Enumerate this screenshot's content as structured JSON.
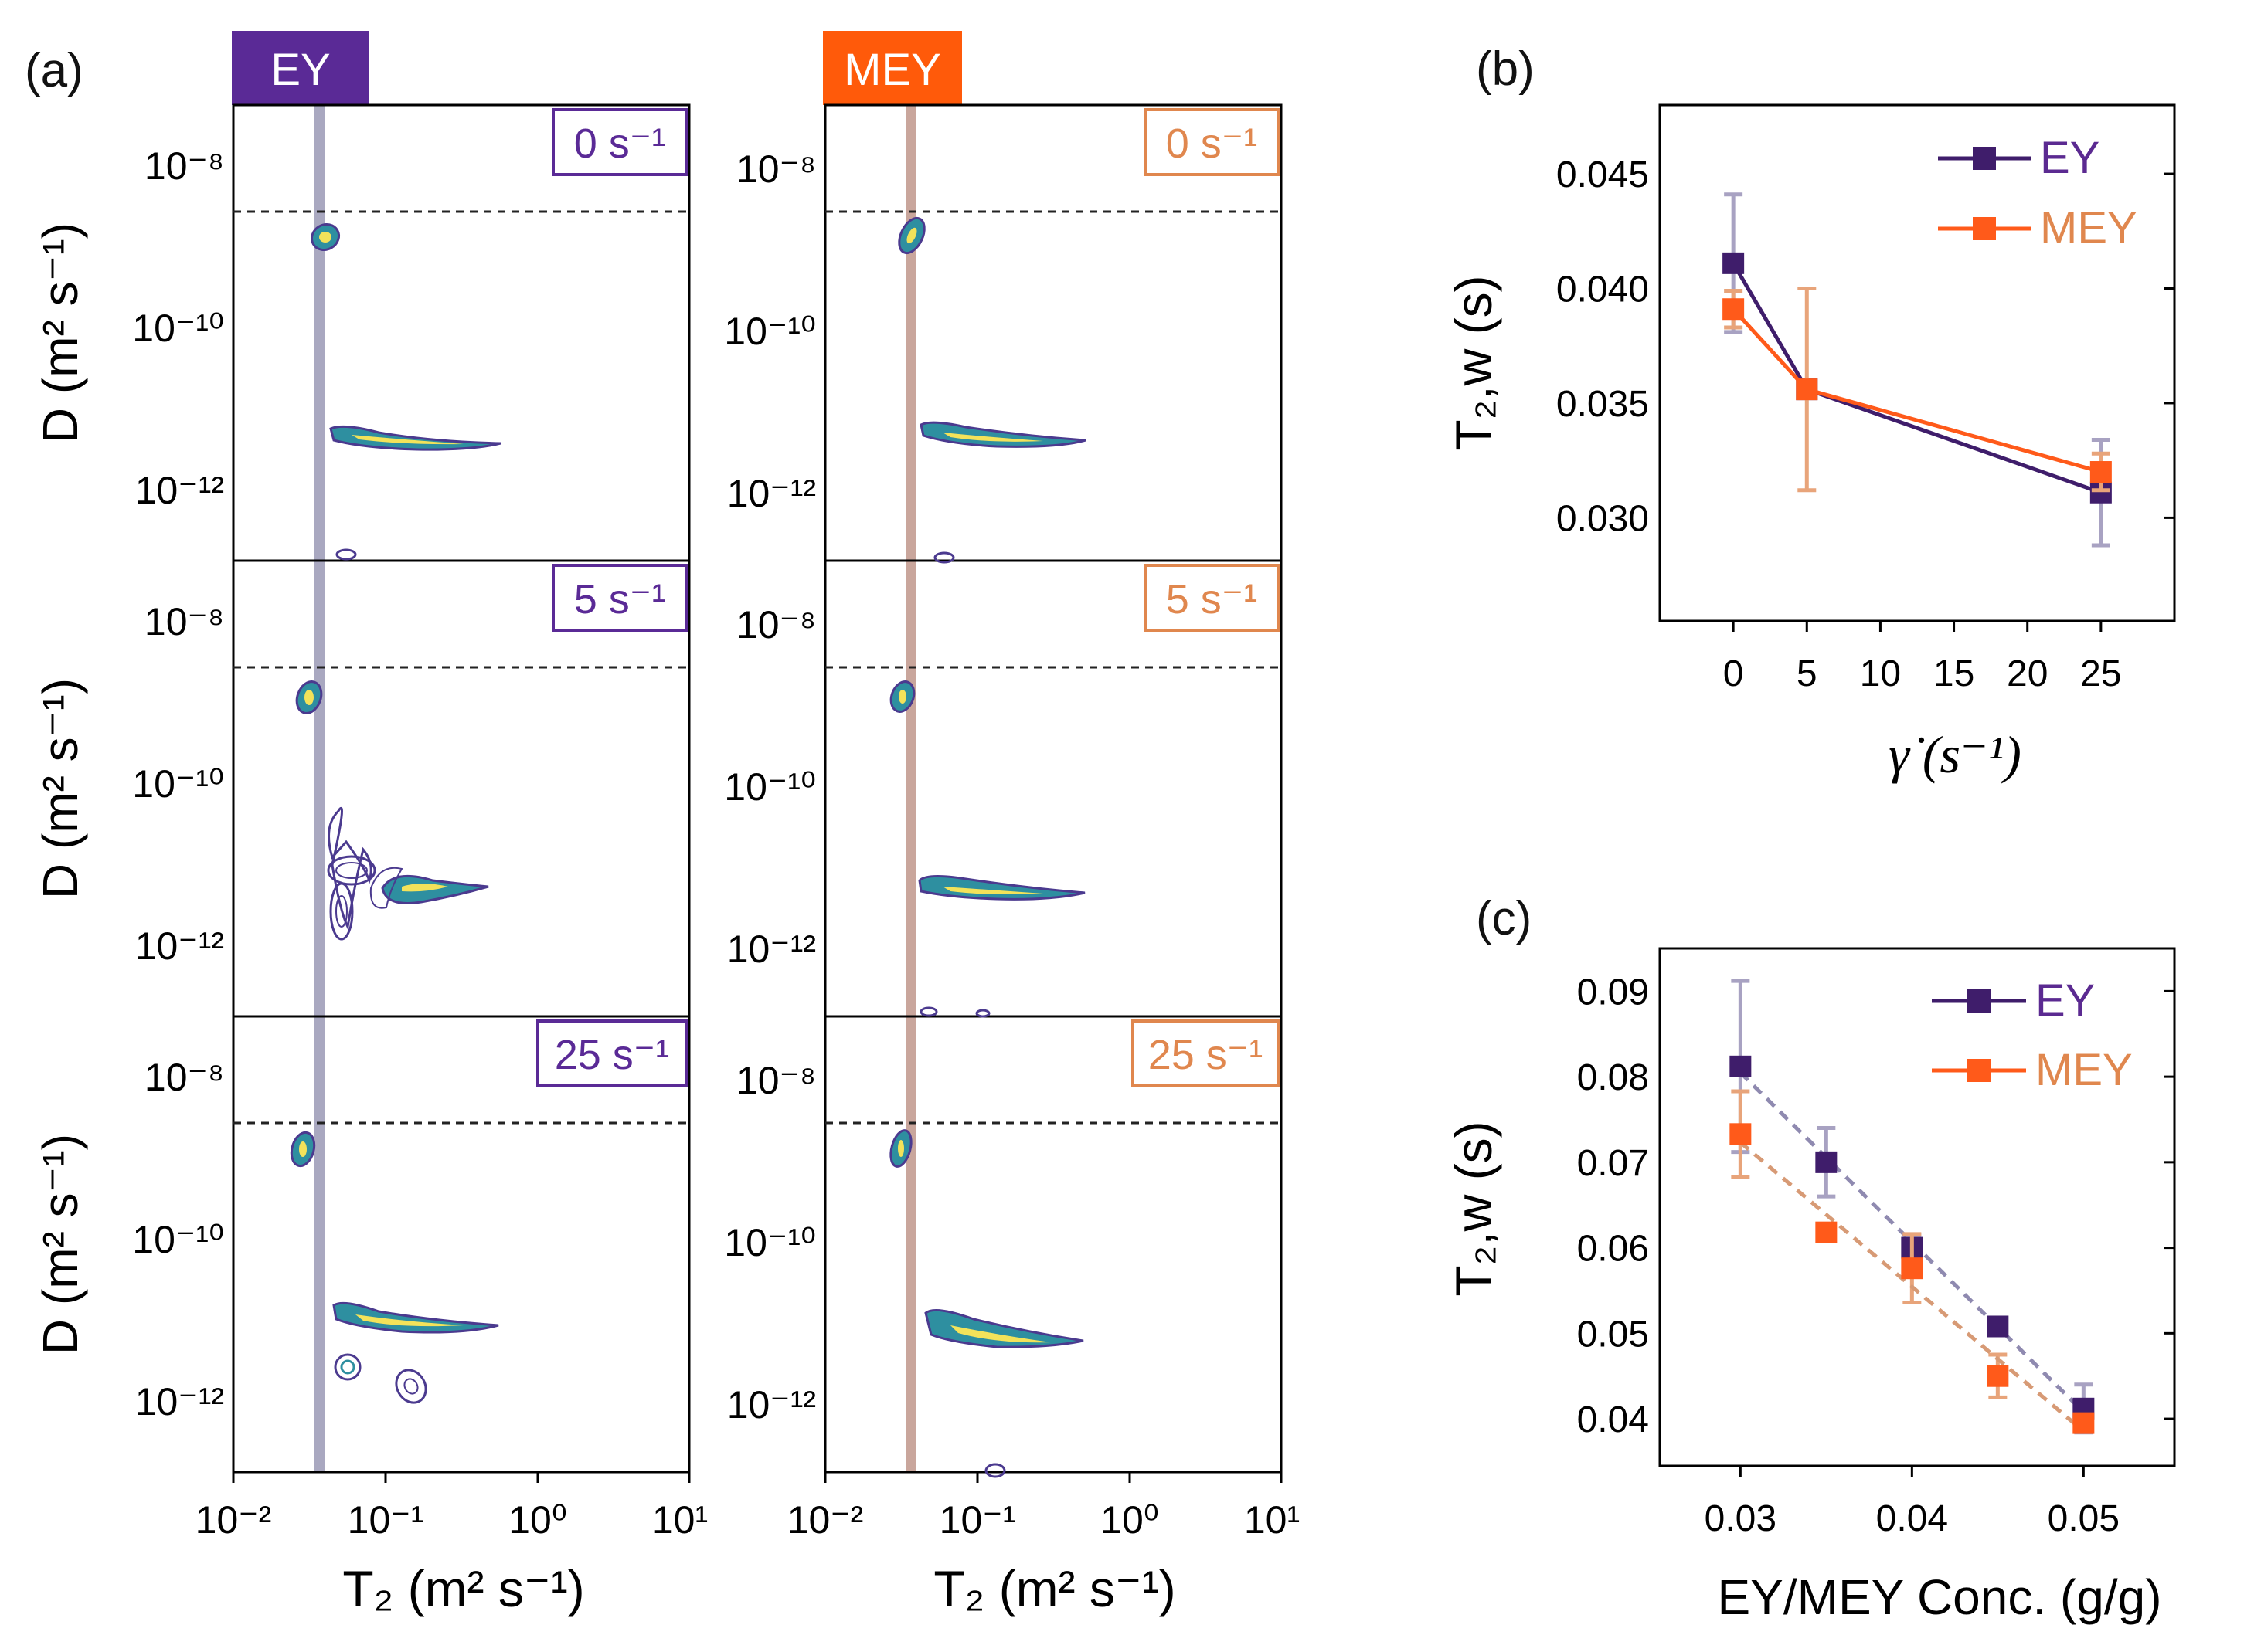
{
  "colors": {
    "ey": "#3f1d6b",
    "mey": "#ff5a1a",
    "ey_light": "#5b2a91",
    "mey_light": "#e0874e",
    "ey_err": "#a8a2c2",
    "mey_err": "#e8a47a",
    "ey_band": "#a9a8c0",
    "mey_band": "#c9a69c",
    "contour_outer": "#4b3a8f",
    "contour_mid": "#2e8fa0",
    "contour_inner": "#f3e25a"
  },
  "panel_a": {
    "label": "(a)",
    "columns": [
      {
        "header": "EY"
      },
      {
        "header": "MEY"
      }
    ],
    "rows": [
      {
        "rate_label": "0 s⁻¹"
      },
      {
        "rate_label": "5 s⁻¹"
      },
      {
        "rate_label": "25 s⁻¹"
      }
    ],
    "ylabel": "D (m² s⁻¹)",
    "xlabel": "T₂ (m² s⁻¹)",
    "y_tick_labels": [
      "10⁻⁸",
      "10⁻¹⁰",
      "10⁻¹²"
    ],
    "x_tick_labels": [
      "10⁻²",
      "10⁻¹",
      "10⁰",
      "10¹"
    ]
  },
  "chart_data": [
    {
      "id": "b",
      "type": "line",
      "panel_label": "(b)",
      "title": "",
      "xlabel": "γ̇ (s⁻¹)",
      "ylabel": "T₂,w (s)",
      "xlim": [
        -5,
        30
      ],
      "ylim": [
        0.0255,
        0.048
      ],
      "x_ticks": [
        0,
        5,
        10,
        15,
        20,
        25
      ],
      "x_tick_labels": [
        "0",
        "5",
        "10",
        "15",
        "20",
        "25"
      ],
      "y_ticks": [
        0.03,
        0.035,
        0.04,
        0.045
      ],
      "y_tick_labels": [
        "0.030",
        "0.035",
        "0.040",
        "0.045"
      ],
      "legend_position": "top-right",
      "series": [
        {
          "name": "EY",
          "x": [
            0,
            5,
            25
          ],
          "y": [
            0.0411,
            0.0356,
            0.0311
          ],
          "err": [
            0.003,
            0.0003,
            0.0023
          ]
        },
        {
          "name": "MEY",
          "x": [
            0,
            5,
            25
          ],
          "y": [
            0.0391,
            0.0356,
            0.032
          ],
          "err": [
            0.0008,
            0.0044,
            0.0008
          ]
        }
      ]
    },
    {
      "id": "c",
      "type": "scatter",
      "panel_label": "(c)",
      "title": "",
      "xlabel": "EY/MEY Conc. (g/g)",
      "ylabel": "T₂,w (s)",
      "xlim": [
        0.0253,
        0.0553
      ],
      "ylim": [
        0.0345,
        0.095
      ],
      "x_ticks": [
        0.03,
        0.04,
        0.05
      ],
      "x_tick_labels": [
        "0.03",
        "0.04",
        "0.05"
      ],
      "y_ticks": [
        0.04,
        0.05,
        0.06,
        0.07,
        0.08,
        0.09
      ],
      "y_tick_labels": [
        "0.04",
        "0.05",
        "0.06",
        "0.07",
        "0.08",
        "0.09"
      ],
      "legend_position": "top-right",
      "fit": "dashed linear fit per series",
      "series": [
        {
          "name": "EY",
          "x": [
            0.03,
            0.035,
            0.04,
            0.045,
            0.05
          ],
          "y": [
            0.0812,
            0.07,
            0.06,
            0.0508,
            0.0412
          ],
          "err": [
            0.01,
            0.004,
            0.0015,
            0.0,
            0.0028
          ]
        },
        {
          "name": "MEY",
          "x": [
            0.03,
            0.035,
            0.04,
            0.045,
            0.05
          ],
          "y": [
            0.0733,
            0.0618,
            0.0576,
            0.045,
            0.0395
          ],
          "err": [
            0.005,
            0.0,
            0.004,
            0.0025,
            0.0
          ]
        }
      ]
    }
  ]
}
